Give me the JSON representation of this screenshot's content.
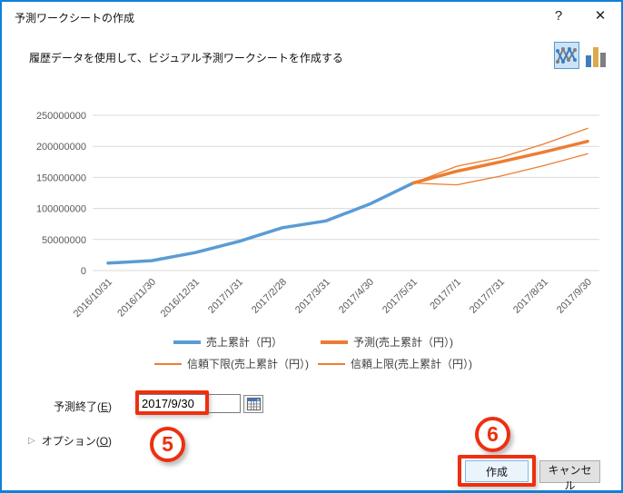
{
  "dialog": {
    "title": "予測ワークシートの作成",
    "help_label": "?",
    "close_label": "✕",
    "subtitle": "履歴データを使用して、ビジュアル予測ワークシートを作成する"
  },
  "chart_type_toggle": {
    "line_icon": "line-chart-type",
    "bar_icon": "bar-chart-type",
    "selected": "line",
    "bar_icon_colors": [
      "#3e7ebf",
      "#dcaa4e",
      "#7f7f7f"
    ]
  },
  "chart_data": {
    "type": "line",
    "title": "",
    "xlabel": "",
    "ylabel": "",
    "categories": [
      "2016/10/31",
      "2016/11/30",
      "2016/12/31",
      "2017/1/31",
      "2017/2/28",
      "2017/3/31",
      "2017/4/30",
      "2017/5/31",
      "2017/7/1",
      "2017/7/31",
      "2017/8/31",
      "2017/9/30"
    ],
    "ylim": [
      0,
      250000000
    ],
    "yticks": [
      0,
      50000000,
      100000000,
      150000000,
      200000000,
      250000000
    ],
    "grid": true,
    "legend_position": "bottom",
    "axis_color": "#595959",
    "grid_color": "#d9d9d9",
    "series": [
      {
        "name": "売上累計（円）",
        "color": "#5b9bd5",
        "thickness": "thick",
        "values": [
          12000000,
          16000000,
          29000000,
          47000000,
          69000000,
          80000000,
          107000000,
          141000000,
          null,
          null,
          null,
          null
        ]
      },
      {
        "name": "予測(売上累計（円）)",
        "color": "#ed7d31",
        "thickness": "thick",
        "values": [
          null,
          null,
          null,
          null,
          null,
          null,
          null,
          141000000,
          160000000,
          175000000,
          191000000,
          208000000
        ]
      },
      {
        "name": "信頼下限(売上累計（円）)",
        "color": "#ed7d31",
        "thickness": "thin",
        "values": [
          null,
          null,
          null,
          null,
          null,
          null,
          null,
          141000000,
          138000000,
          152000000,
          169000000,
          188000000
        ]
      },
      {
        "name": "信頼上限(売上累計（円）)",
        "color": "#ed7d31",
        "thickness": "thin",
        "values": [
          null,
          null,
          null,
          null,
          null,
          null,
          null,
          141000000,
          168000000,
          182000000,
          204000000,
          229000000
        ]
      }
    ],
    "legend_rows": [
      [
        0,
        1
      ],
      [
        2,
        3
      ]
    ]
  },
  "forecast_end": {
    "label_prefix": "予測終了(",
    "access_key": "E",
    "label_suffix": ")",
    "value": "2017/9/30"
  },
  "options": {
    "expander": "▷",
    "label_prefix": "オプション(",
    "access_key": "O",
    "label_suffix": ")"
  },
  "annotations": {
    "step5": "5",
    "step6": "6",
    "highlight_color": "#ee2f0f"
  },
  "buttons": {
    "create": "作成",
    "cancel": "キャンセル"
  }
}
